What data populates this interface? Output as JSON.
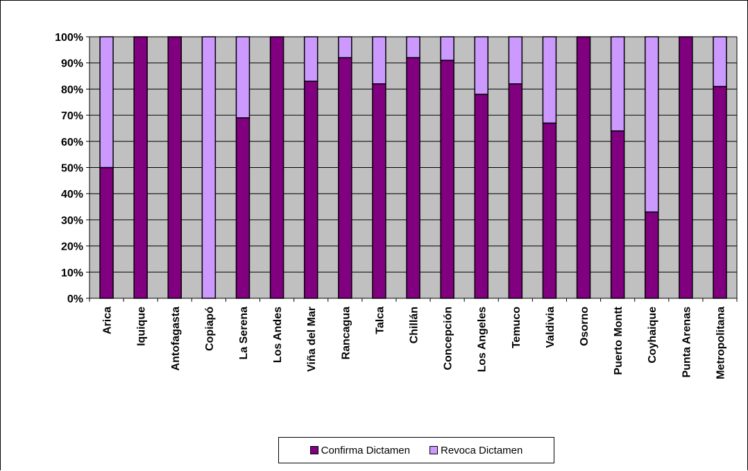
{
  "chart_data": {
    "type": "bar",
    "stacked": true,
    "percent": true,
    "categories": [
      "Arica",
      "Iquique",
      "Antofagasta",
      "Copiapó",
      "La Serena",
      "Los Andes",
      "Viña del Mar",
      "Rancagua",
      "Talca",
      "Chillán",
      "Concepción",
      "Los Angeles",
      "Temuco",
      "Valdivia",
      "Osorno",
      "Puerto Montt",
      "Coyhaique",
      "Punta Arenas",
      "Metropolitana"
    ],
    "series": [
      {
        "name": "Confirma Dictamen",
        "color": "#800080",
        "values": [
          50,
          100,
          100,
          0,
          69,
          100,
          83,
          92,
          82,
          92,
          91,
          78,
          82,
          67,
          100,
          64,
          33,
          100,
          81
        ]
      },
      {
        "name": "Revoca Dictamen",
        "color": "#cc99ff",
        "values": [
          50,
          0,
          0,
          100,
          31,
          0,
          17,
          8,
          18,
          8,
          9,
          22,
          18,
          33,
          0,
          36,
          67,
          0,
          19
        ]
      }
    ],
    "ylim": [
      0,
      100
    ],
    "yticks": [
      "0%",
      "10%",
      "20%",
      "30%",
      "40%",
      "50%",
      "60%",
      "70%",
      "80%",
      "90%",
      "100%"
    ],
    "grid": true,
    "plot_background": "#c0c0c0",
    "legend_position": "bottom"
  },
  "legend": {
    "items": [
      {
        "label": "Confirma Dictamen",
        "color": "#800080"
      },
      {
        "label": "Revoca Dictamen",
        "color": "#cc99ff"
      }
    ]
  }
}
